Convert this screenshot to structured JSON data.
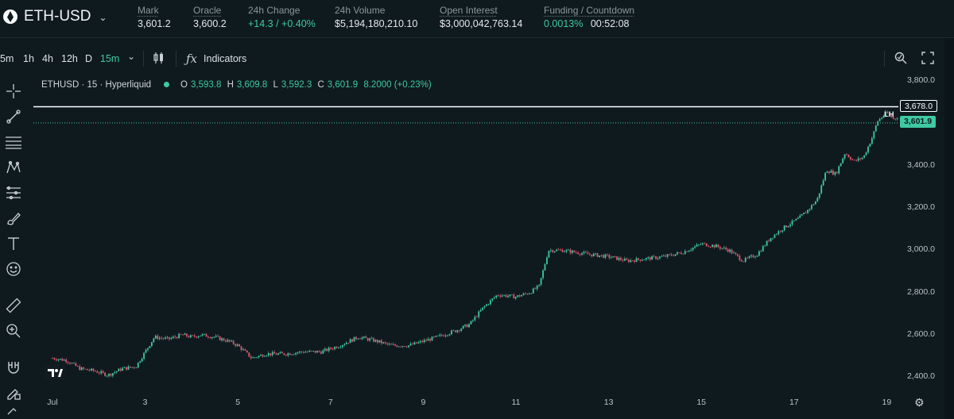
{
  "header": {
    "pair": "ETH-USD",
    "stats": [
      {
        "label": "Mark",
        "value": "3,601.2"
      },
      {
        "label": "Oracle",
        "value": "3,600.2"
      },
      {
        "label": "24h Change",
        "value": "+14.3 / +0.40%"
      },
      {
        "label": "24h Volume",
        "value": "$5,194,180,210.10"
      },
      {
        "label": "Open Interest",
        "value": "$3,000,042,763.14"
      },
      {
        "label": "Funding / Countdown",
        "funding": "0.0013%",
        "countdown": "00:52:08"
      }
    ]
  },
  "toolbar": {
    "timeframes": [
      "5m",
      "1h",
      "4h",
      "12h",
      "D",
      "15m"
    ],
    "active_timeframe": "15m",
    "indicators_label": "Indicators",
    "candle_type_icon": "candlestick-icon",
    "search_icon": "zoom-icon",
    "fullscreen_icon": "fullscreen-icon"
  },
  "left_tools": [
    "crosshair-icon",
    "trendline-icon",
    "horizontal-lines-icon",
    "pattern-icon",
    "fib-icon",
    "brush-icon",
    "text-icon",
    "emoji-icon",
    "ruler-icon",
    "zoom-in-icon",
    "magnet-icon",
    "lock-pencil-icon"
  ],
  "legend": {
    "symbol": "ETHUSD · 15 · Hyperliquid",
    "o_label": "O",
    "o": "3,593.8",
    "h_label": "H",
    "h": "3,609.8",
    "l_label": "L",
    "l": "3,592.3",
    "c_label": "C",
    "c": "3,601.9",
    "change": "8.2000 (+0.23%)"
  },
  "price_tags": {
    "line_price": "3,678.0",
    "last_price": "3,601.9",
    "lh_label": "LH"
  },
  "colors": {
    "up": "#3fc9a4",
    "down": "#e0576a",
    "accent": "#3fc9a4",
    "background": "#0f1a1f"
  },
  "chart_data": {
    "type": "candlestick",
    "yticks": [
      "3,800.0",
      "3,600.0",
      "3,400.0",
      "3,200.0",
      "3,000.0",
      "2,800.0",
      "2,600.0",
      "2,400.0"
    ],
    "xticks": [
      "Jul",
      "3",
      "5",
      "7",
      "9",
      "11",
      "13",
      "15",
      "17",
      "19"
    ],
    "ylim": [
      2360,
      3800
    ],
    "horizontal_line": 3678.0,
    "last_price": 3601.9,
    "series": [
      [
        0,
        2490
      ],
      [
        0.3,
        2480
      ],
      [
        0.6,
        2440
      ],
      [
        0.9,
        2430
      ],
      [
        1.2,
        2410
      ],
      [
        1.5,
        2440
      ],
      [
        1.8,
        2450
      ],
      [
        2.0,
        2520
      ],
      [
        2.2,
        2590
      ],
      [
        2.5,
        2580
      ],
      [
        2.8,
        2600
      ],
      [
        3.0,
        2590
      ],
      [
        3.2,
        2600
      ],
      [
        3.5,
        2590
      ],
      [
        3.8,
        2570
      ],
      [
        4.0,
        2550
      ],
      [
        4.3,
        2490
      ],
      [
        4.6,
        2510
      ],
      [
        5.0,
        2510
      ],
      [
        5.4,
        2520
      ],
      [
        5.8,
        2520
      ],
      [
        6.2,
        2550
      ],
      [
        6.6,
        2590
      ],
      [
        7.0,
        2570
      ],
      [
        7.3,
        2550
      ],
      [
        7.7,
        2550
      ],
      [
        8.0,
        2570
      ],
      [
        8.3,
        2590
      ],
      [
        8.7,
        2620
      ],
      [
        9.0,
        2650
      ],
      [
        9.3,
        2730
      ],
      [
        9.6,
        2790
      ],
      [
        10.0,
        2780
      ],
      [
        10.3,
        2800
      ],
      [
        10.5,
        2830
      ],
      [
        10.7,
        3000
      ],
      [
        11.0,
        3000
      ],
      [
        11.3,
        2990
      ],
      [
        11.6,
        2980
      ],
      [
        12.0,
        2970
      ],
      [
        12.4,
        2950
      ],
      [
        12.8,
        2960
      ],
      [
        13.2,
        2970
      ],
      [
        13.6,
        2990
      ],
      [
        14.0,
        3030
      ],
      [
        14.3,
        3020
      ],
      [
        14.6,
        3000
      ],
      [
        14.9,
        2950
      ],
      [
        15.2,
        2980
      ],
      [
        15.5,
        3060
      ],
      [
        15.8,
        3110
      ],
      [
        16.1,
        3150
      ],
      [
        16.3,
        3190
      ],
      [
        16.5,
        3240
      ],
      [
        16.7,
        3380
      ],
      [
        16.9,
        3360
      ],
      [
        17.1,
        3460
      ],
      [
        17.3,
        3420
      ],
      [
        17.5,
        3440
      ],
      [
        17.7,
        3540
      ],
      [
        17.8,
        3610
      ],
      [
        18.0,
        3650
      ],
      [
        18.15,
        3620
      ],
      [
        18.3,
        3640
      ],
      [
        18.45,
        3600
      ],
      [
        18.6,
        3570
      ],
      [
        18.75,
        3590
      ],
      [
        18.85,
        3601.9
      ]
    ]
  }
}
